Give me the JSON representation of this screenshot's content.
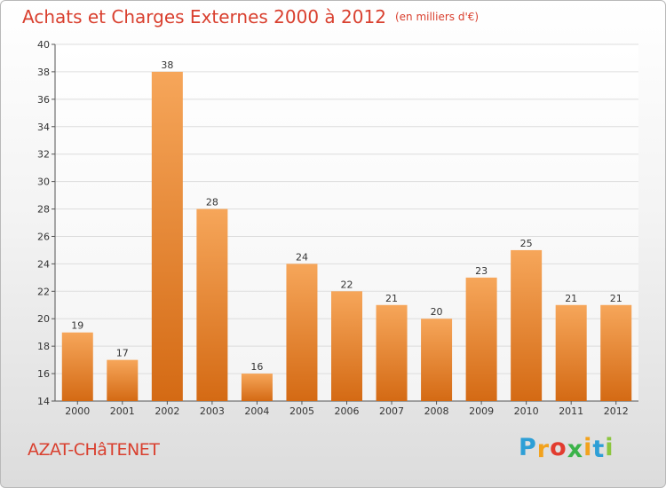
{
  "header": {
    "title": "Achats et Charges Externes 2000 à 2012",
    "unit": "(en milliers d'€)"
  },
  "footer": {
    "commune": "AZAT-CHâTENET",
    "logo_letters": [
      "P",
      "r",
      "o",
      "x",
      "i",
      "t",
      "i"
    ],
    "logo_colors": [
      "#2e9fd6",
      "#f2a21d",
      "#e23c2f",
      "#3bb34a",
      "#f2a21d",
      "#2e9fd6",
      "#8cc63f"
    ]
  },
  "colors": {
    "bar_top": "#f6a65a",
    "bar_bottom": "#d46a14",
    "title": "#d9402f",
    "grid": "#dddddd"
  },
  "chart_data": {
    "type": "bar",
    "title": "Achats et Charges Externes 2000 à 2012",
    "subtitle": "(en milliers d'€)",
    "xlabel": "",
    "ylabel": "",
    "categories": [
      "2000",
      "2001",
      "2002",
      "2003",
      "2004",
      "2005",
      "2006",
      "2007",
      "2008",
      "2009",
      "2010",
      "2011",
      "2012"
    ],
    "values": [
      19,
      17,
      38,
      28,
      16,
      24,
      22,
      21,
      20,
      23,
      25,
      21,
      21
    ],
    "ylim": [
      14,
      40
    ],
    "yticks": [
      14,
      16,
      18,
      20,
      22,
      24,
      26,
      28,
      30,
      32,
      34,
      36,
      38,
      40
    ],
    "grid": true,
    "legend": "none"
  }
}
